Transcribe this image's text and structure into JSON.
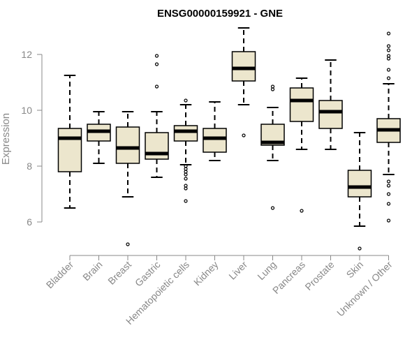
{
  "chart_data": {
    "type": "boxplot",
    "title": "ENSG00000159921 - GNE",
    "xlabel": "",
    "ylabel": "Expression",
    "ylim": [
      4.8,
      13.2
    ],
    "yticks": [
      6,
      8,
      10,
      12
    ],
    "categories": [
      "Bladder",
      "Brain",
      "Breast",
      "Gastric",
      "Hematopoietic cells",
      "Kidney",
      "Liver",
      "Lung",
      "Pancreas",
      "Prostate",
      "Skin",
      "Unknown / Other"
    ],
    "boxes": [
      {
        "whisker_low": 6.5,
        "q1": 7.8,
        "median": 9.0,
        "q3": 9.35,
        "whisker_high": 11.25,
        "outliers": []
      },
      {
        "whisker_low": 8.1,
        "q1": 8.9,
        "median": 9.25,
        "q3": 9.5,
        "whisker_high": 9.95,
        "outliers": []
      },
      {
        "whisker_low": 6.9,
        "q1": 8.1,
        "median": 8.65,
        "q3": 9.4,
        "whisker_high": 9.95,
        "outliers": [
          5.2
        ]
      },
      {
        "whisker_low": 7.6,
        "q1": 8.25,
        "median": 8.45,
        "q3": 9.2,
        "whisker_high": 9.95,
        "outliers": [
          10.85,
          11.65,
          11.95
        ]
      },
      {
        "whisker_low": 8.05,
        "q1": 8.9,
        "median": 9.25,
        "q3": 9.45,
        "whisker_high": 10.2,
        "outliers": [
          10.35,
          8.0,
          7.9,
          7.8,
          7.7,
          7.55,
          7.3,
          7.2,
          6.75
        ]
      },
      {
        "whisker_low": 8.2,
        "q1": 8.5,
        "median": 9.0,
        "q3": 9.35,
        "whisker_high": 10.3,
        "outliers": []
      },
      {
        "whisker_low": 10.2,
        "q1": 11.05,
        "median": 11.5,
        "q3": 12.1,
        "whisker_high": 12.95,
        "outliers": [
          9.1
        ]
      },
      {
        "whisker_low": 8.2,
        "q1": 8.75,
        "median": 8.85,
        "q3": 9.5,
        "whisker_high": 10.1,
        "outliers": [
          10.75,
          10.85,
          6.5
        ]
      },
      {
        "whisker_low": 8.6,
        "q1": 9.6,
        "median": 10.35,
        "q3": 10.8,
        "whisker_high": 11.15,
        "outliers": [
          6.4
        ]
      },
      {
        "whisker_low": 8.6,
        "q1": 9.35,
        "median": 9.95,
        "q3": 10.35,
        "whisker_high": 11.8,
        "outliers": []
      },
      {
        "whisker_low": 5.85,
        "q1": 6.9,
        "median": 7.25,
        "q3": 7.85,
        "whisker_high": 9.2,
        "outliers": [
          5.05
        ]
      },
      {
        "whisker_low": 7.7,
        "q1": 8.85,
        "median": 9.3,
        "q3": 9.7,
        "whisker_high": 10.95,
        "outliers": [
          11.15,
          11.45,
          11.85,
          11.95,
          12.15,
          12.3,
          12.75,
          7.45,
          7.3,
          7.0,
          6.65,
          6.05
        ]
      }
    ]
  },
  "colors": {
    "box_fill": "#ece6cd",
    "stroke": "#000000",
    "axis": "#888888"
  }
}
